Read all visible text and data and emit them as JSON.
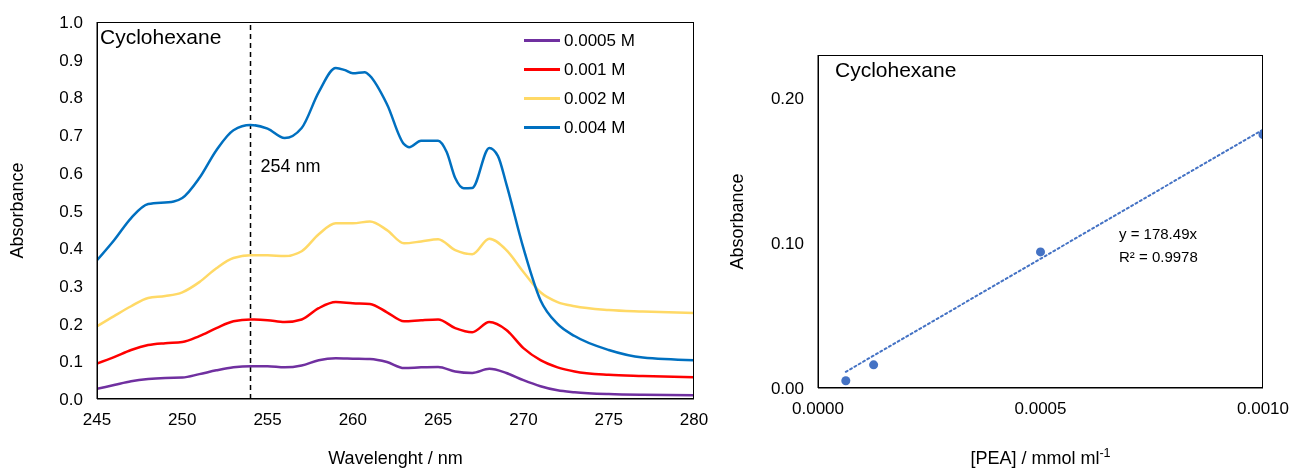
{
  "chart_data": [
    {
      "type": "line",
      "title": "Cyclohexane",
      "xlabel": "Wavelenght / nm",
      "ylabel": "Absorbance",
      "legend": "top right",
      "x": [
        245,
        246,
        247,
        248,
        249,
        250,
        251,
        252,
        253,
        254,
        255,
        256,
        257,
        258,
        259,
        260,
        261,
        262,
        263,
        264,
        265,
        266,
        267,
        268,
        269,
        270,
        271,
        272,
        273,
        275,
        277,
        280
      ],
      "series": [
        {
          "name": "0.0005 M",
          "color": "#7030a0",
          "values": [
            0.027,
            0.037,
            0.047,
            0.053,
            0.056,
            0.057,
            0.066,
            0.076,
            0.084,
            0.087,
            0.087,
            0.084,
            0.089,
            0.103,
            0.108,
            0.107,
            0.106,
            0.098,
            0.082,
            0.084,
            0.085,
            0.073,
            0.069,
            0.08,
            0.069,
            0.05,
            0.034,
            0.023,
            0.018,
            0.013,
            0.011,
            0.01
          ]
        },
        {
          "name": "0.001 M",
          "color": "#ff0000",
          "values": [
            0.094,
            0.111,
            0.13,
            0.143,
            0.148,
            0.151,
            0.167,
            0.188,
            0.206,
            0.211,
            0.209,
            0.204,
            0.211,
            0.241,
            0.257,
            0.254,
            0.252,
            0.23,
            0.206,
            0.209,
            0.211,
            0.188,
            0.177,
            0.204,
            0.183,
            0.135,
            0.103,
            0.084,
            0.073,
            0.064,
            0.061,
            0.058
          ]
        },
        {
          "name": "0.002 M",
          "color": "#ffd966",
          "values": [
            0.193,
            0.22,
            0.246,
            0.268,
            0.273,
            0.283,
            0.31,
            0.347,
            0.374,
            0.381,
            0.381,
            0.379,
            0.392,
            0.437,
            0.466,
            0.466,
            0.471,
            0.448,
            0.413,
            0.418,
            0.424,
            0.395,
            0.384,
            0.425,
            0.395,
            0.337,
            0.283,
            0.257,
            0.246,
            0.236,
            0.232,
            0.228
          ]
        },
        {
          "name": "0.004 M",
          "color": "#0070c0",
          "x": [
            245,
            246,
            247,
            248,
            249.5,
            250,
            251,
            252,
            253,
            254,
            255,
            256,
            257,
            258,
            259,
            259.5,
            260,
            260.7,
            261,
            262,
            263,
            263.3,
            264,
            265,
            265.5,
            266,
            266.5,
            267,
            268,
            268.5,
            269,
            270,
            271,
            272,
            273,
            275,
            277,
            280
          ],
          "values": [
            0.368,
            0.421,
            0.48,
            0.517,
            0.524,
            0.533,
            0.586,
            0.66,
            0.713,
            0.727,
            0.717,
            0.692,
            0.719,
            0.814,
            0.878,
            0.873,
            0.864,
            0.867,
            0.857,
            0.782,
            0.676,
            0.668,
            0.685,
            0.685,
            0.655,
            0.586,
            0.559,
            0.56,
            0.666,
            0.645,
            0.57,
            0.4,
            0.262,
            0.199,
            0.167,
            0.13,
            0.11,
            0.103
          ]
        }
      ],
      "xlim": [
        245,
        280
      ],
      "xticks": [
        245,
        250,
        255,
        260,
        265,
        270,
        275,
        280
      ],
      "ylim": [
        0,
        1
      ],
      "yticks": [
        {
          "value": 0,
          "label": "0.0"
        },
        0.1,
        0.2,
        0.3,
        0.4,
        0.5,
        0.6,
        0.7,
        0.8,
        0.9,
        {
          "value": 1,
          "label": "1.0"
        }
      ],
      "ref_lines": [
        {
          "axis": "x",
          "value": 254,
          "label": "254 nm",
          "color": "#000000",
          "line_style": "dashed"
        }
      ],
      "line_style": "solid"
    },
    {
      "type": "scatter",
      "title": "Cyclohexane",
      "xlabel": "[PEA] / mmol ml$^{-1}$",
      "ylabel": "Absorbance",
      "series": [
        {
          "color": "#4472c4",
          "marker": "circle",
          "x": [
            6.25e-05,
            0.000125,
            0.0005,
            0.001
          ],
          "values": [
            0.005,
            0.016,
            0.094,
            0.175
          ]
        },
        {
          "type": "line",
          "color": "#4472c4",
          "line_style": "dotted",
          "x": [
            6.25e-05,
            0.001
          ],
          "values": [
            0.0112,
            0.1785
          ]
        }
      ],
      "xlim": [
        0,
        0.001
      ],
      "xticks": [
        {
          "value": 0,
          "label": "0.0000"
        },
        {
          "value": 0.0005,
          "label": "0.0005"
        },
        {
          "value": 0.001,
          "label": "0.0010"
        }
      ],
      "ylim": [
        0,
        0.23
      ],
      "yticks": [
        {
          "value": 0,
          "label": "0.00"
        },
        {
          "value": 0.1,
          "label": "0.10"
        },
        {
          "value": 0.2,
          "label": "0.20"
        }
      ],
      "annotations": [
        "y = 178.49x",
        "R² = 0.9978"
      ]
    }
  ]
}
